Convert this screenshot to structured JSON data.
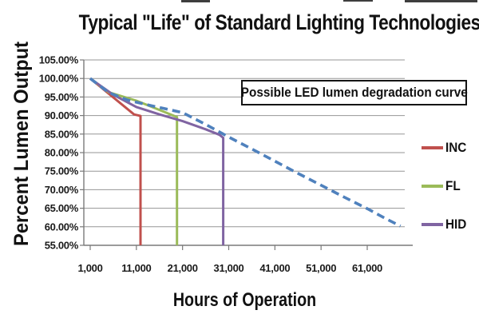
{
  "page": {
    "background": "#ffffff"
  },
  "chart_data": {
    "type": "line",
    "title": "Typical \"Life\" of Standard Lighting Technologies",
    "xlabel": "Hours of Operation",
    "ylabel": "Percent Lumen Output",
    "annotation": "Possible LED lumen degradation curve",
    "grid": true,
    "legend_position": "right",
    "xlim": [
      1000,
      69100
    ],
    "ylim": [
      55,
      105
    ],
    "x_ticks": [
      {
        "value": 1000,
        "label": "1,000"
      },
      {
        "value": 11000,
        "label": "11,000"
      },
      {
        "value": 21000,
        "label": "21,000"
      },
      {
        "value": 31000,
        "label": "31,000"
      },
      {
        "value": 41000,
        "label": "41,000"
      },
      {
        "value": 51000,
        "label": "51,000"
      },
      {
        "value": 61000,
        "label": "61,000"
      }
    ],
    "y_ticks": [
      {
        "value": 105,
        "label": "105.00%"
      },
      {
        "value": 100,
        "label": "100.00%"
      },
      {
        "value": 95,
        "label": "95.00%"
      },
      {
        "value": 90,
        "label": "90.00%"
      },
      {
        "value": 85,
        "label": "85.00%"
      },
      {
        "value": 80,
        "label": "80.00%"
      },
      {
        "value": 75,
        "label": "75.00%"
      },
      {
        "value": 70,
        "label": "70.00%"
      },
      {
        "value": 65,
        "label": "65.00%"
      },
      {
        "value": 60,
        "label": "60.00%"
      },
      {
        "value": 55,
        "label": "55.00%"
      }
    ],
    "series": [
      {
        "name": "INC",
        "color": "#C0504D",
        "style": "solid",
        "legend": true,
        "points": [
          [
            1000,
            100
          ],
          [
            10500,
            90.3
          ],
          [
            11900,
            89.9
          ],
          [
            11900,
            55
          ]
        ]
      },
      {
        "name": "FL",
        "color": "#9BBB59",
        "style": "solid",
        "legend": true,
        "points": [
          [
            1000,
            100
          ],
          [
            5000,
            96.3
          ],
          [
            11000,
            94
          ],
          [
            16000,
            91.5
          ],
          [
            19000,
            90
          ],
          [
            19800,
            89.6
          ],
          [
            19800,
            55
          ]
        ]
      },
      {
        "name": "HID",
        "color": "#8064A2",
        "style": "solid",
        "legend": true,
        "points": [
          [
            1000,
            100
          ],
          [
            6000,
            95.6
          ],
          [
            11000,
            92.3
          ],
          [
            16000,
            90.3
          ],
          [
            21000,
            88.5
          ],
          [
            26000,
            86.3
          ],
          [
            29000,
            84.8
          ],
          [
            29800,
            84
          ],
          [
            29800,
            55
          ]
        ]
      },
      {
        "name": "LED",
        "color": "#4F81BD",
        "style": "dashed",
        "legend": false,
        "points": [
          [
            1000,
            100
          ],
          [
            5000,
            96.2
          ],
          [
            9000,
            94.2
          ],
          [
            13000,
            93
          ],
          [
            17000,
            91.9
          ],
          [
            21000,
            90.8
          ],
          [
            26000,
            87.6
          ],
          [
            31000,
            84.2
          ],
          [
            36000,
            81
          ],
          [
            41000,
            77.7
          ],
          [
            46000,
            74.4
          ],
          [
            51000,
            71.2
          ],
          [
            56000,
            68
          ],
          [
            61000,
            64.9
          ],
          [
            65000,
            62.2
          ],
          [
            68200,
            60.2
          ]
        ]
      }
    ]
  }
}
